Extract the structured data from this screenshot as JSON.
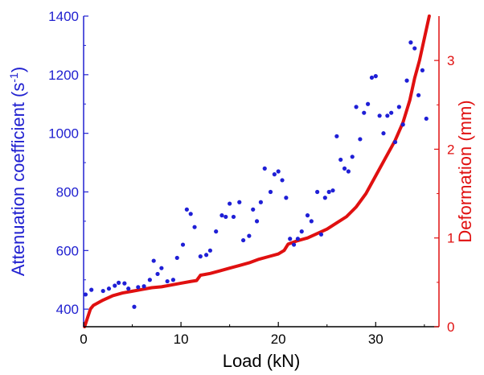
{
  "chart_data": {
    "type": "scatter+line",
    "xlabel": "Load (kN)",
    "ylabel_left": "Attenuation coefficient (s",
    "ylabel_left_sup": "-1",
    "ylabel_left_end": ")",
    "ylabel_right": "Deformation (mm)",
    "xlim": [
      0,
      36.5
    ],
    "ylim_left": [
      340,
      1400
    ],
    "ylim_right": [
      0,
      3.5
    ],
    "x_ticks": [
      0,
      10,
      20,
      30
    ],
    "x_tick_labels": [
      "0",
      "10",
      "20",
      "30"
    ],
    "y_left_ticks": [
      400,
      600,
      800,
      1000,
      1200,
      1400
    ],
    "y_left_tick_labels": [
      "400",
      "600",
      "800",
      "1000",
      "1200",
      "1400"
    ],
    "y_right_ticks": [
      0,
      1,
      2,
      3
    ],
    "y_right_tick_labels": [
      "0",
      "1",
      "2",
      "3"
    ],
    "colors": {
      "scatter": "#1f1fd6",
      "line": "#e01010",
      "left_axis": "#2020d0",
      "right_axis": "#e01010",
      "bottom_axis": "#000000"
    },
    "series": [
      {
        "kind": "scatter",
        "axis": "left",
        "x": [
          0.2,
          0.8,
          2.0,
          2.6,
          3.2,
          3.6,
          4.2,
          4.6,
          5.2,
          5.6,
          6.2,
          6.8,
          7.2,
          7.6,
          8.0,
          8.6,
          9.2,
          9.6,
          10.2,
          10.6,
          11.0,
          11.4,
          12.0,
          12.6,
          13.0,
          13.6,
          14.2,
          14.6,
          15.0,
          15.4,
          16.0,
          16.4,
          17.0,
          17.4,
          17.8,
          18.2,
          18.6,
          19.2,
          19.6,
          20.0,
          20.4,
          20.8,
          21.2,
          21.6,
          22.0,
          22.4,
          23.0,
          23.4,
          24.0,
          24.4,
          24.8,
          25.2,
          25.6,
          26.0,
          26.4,
          26.8,
          27.2,
          27.6,
          28.0,
          28.4,
          28.8,
          29.2,
          29.6,
          30.0,
          30.4,
          30.8,
          31.2,
          31.6,
          32.0,
          32.4,
          32.8,
          33.2,
          33.6,
          34.0,
          34.4,
          34.8,
          35.2
        ],
        "y": [
          450,
          466,
          462,
          470,
          480,
          490,
          488,
          470,
          408,
          475,
          478,
          500,
          565,
          520,
          540,
          495,
          500,
          575,
          620,
          740,
          725,
          680,
          580,
          585,
          600,
          665,
          720,
          715,
          760,
          715,
          765,
          635,
          650,
          740,
          700,
          765,
          880,
          800,
          860,
          870,
          840,
          780,
          640,
          620,
          640,
          665,
          720,
          700,
          800,
          655,
          780,
          800,
          805,
          990,
          910,
          880,
          870,
          920,
          1090,
          980,
          1070,
          1100,
          1190,
          1195,
          1060,
          1000,
          1060,
          1070,
          970,
          1090,
          1030,
          1180,
          1310,
          1290,
          1130,
          1215,
          1050
        ]
      },
      {
        "kind": "line",
        "axis": "right",
        "x": [
          0.1,
          0.4,
          0.7,
          1.0,
          2.0,
          3.0,
          4.0,
          5.0,
          6.0,
          7.0,
          8.0,
          9.0,
          10.0,
          11.0,
          11.6,
          12.0,
          13.0,
          14.0,
          15.0,
          16.0,
          17.0,
          18.0,
          19.0,
          20.0,
          20.6,
          21.0,
          22.0,
          23.0,
          24.0,
          25.0,
          26.0,
          27.0,
          28.0,
          29.0,
          30.0,
          31.0,
          32.0,
          32.8,
          33.5,
          34.0,
          34.5,
          34.9,
          35.2,
          35.5
        ],
        "y": [
          0.0,
          0.1,
          0.2,
          0.24,
          0.3,
          0.35,
          0.38,
          0.4,
          0.42,
          0.44,
          0.45,
          0.47,
          0.49,
          0.51,
          0.52,
          0.58,
          0.6,
          0.63,
          0.66,
          0.69,
          0.72,
          0.76,
          0.79,
          0.82,
          0.86,
          0.93,
          0.97,
          1.0,
          1.05,
          1.1,
          1.17,
          1.24,
          1.35,
          1.5,
          1.7,
          1.9,
          2.1,
          2.3,
          2.55,
          2.8,
          3.0,
          3.2,
          3.35,
          3.5
        ]
      }
    ]
  }
}
